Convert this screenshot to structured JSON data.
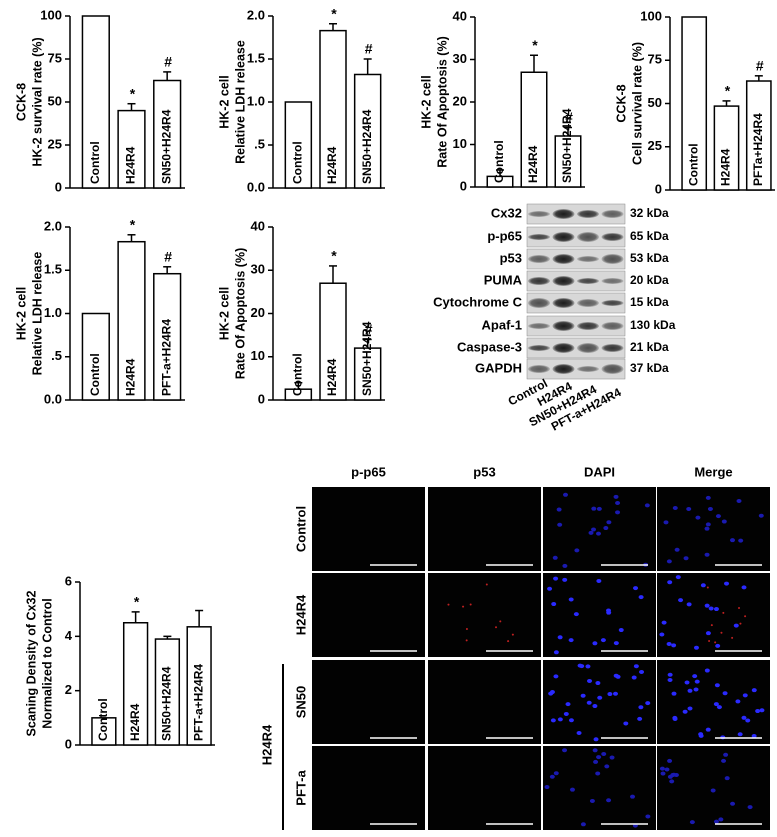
{
  "chart_data": [
    {
      "type": "bar",
      "ylabel": [
        "CCK-8",
        "HK-2 survival rate  (%)"
      ],
      "categories": [
        "Control",
        "H24R4",
        "SN50+H24R4"
      ],
      "values": [
        100,
        45,
        62.5
      ],
      "errors": [
        0,
        4,
        5
      ],
      "markers": [
        null,
        "*",
        "#"
      ],
      "ylim": [
        0,
        100
      ],
      "yticks": [
        0,
        25,
        50,
        75,
        100
      ],
      "color": "#ffffff"
    },
    {
      "type": "bar",
      "ylabel": [
        "HK-2 cell",
        "Relative LDH release"
      ],
      "categories": [
        "Control",
        "H24R4",
        "SN50+H24R4"
      ],
      "values": [
        1,
        1.83,
        1.32
      ],
      "errors": [
        0,
        0.08,
        0.18
      ],
      "markers": [
        null,
        "*",
        "#"
      ],
      "ylim": [
        0,
        2
      ],
      "yticks": [
        {
          "value": 0,
          "label": "0.0"
        },
        {
          "value": 0.5,
          "label": ".5"
        },
        {
          "value": 1,
          "label": "1.0"
        },
        {
          "value": 1.5,
          "label": "1.5"
        },
        {
          "value": 2,
          "label": "2.0"
        }
      ],
      "color": "#ffffff"
    },
    {
      "type": "bar",
      "ylabel": [
        "HK-2 cell",
        "Rate Of Apoptosis (%)"
      ],
      "categories": [
        "Control",
        "H24R4",
        "SN50+H24R4"
      ],
      "values": [
        2.5,
        27,
        12
      ],
      "errors": [
        1.5,
        4,
        2
      ],
      "markers": [
        null,
        "*",
        "#"
      ],
      "ylim": [
        0,
        40
      ],
      "yticks": [
        0,
        10,
        20,
        30,
        40
      ],
      "color": "#ffffff"
    },
    {
      "type": "bar",
      "ylabel": [
        "CCK-8",
        "Cell survival rate  (%)"
      ],
      "categories": [
        "Control",
        "H24R4",
        "PFTa+H24R4"
      ],
      "values": [
        100,
        48.5,
        63
      ],
      "errors": [
        0,
        3,
        3
      ],
      "markers": [
        null,
        "*",
        "#"
      ],
      "ylim": [
        0,
        100
      ],
      "yticks": [
        0,
        25,
        50,
        75,
        100
      ],
      "color": "#ffffff"
    },
    {
      "type": "bar",
      "ylabel": [
        "HK-2 cell",
        "Relative LDH release"
      ],
      "categories": [
        "Control",
        "H24R4",
        "PFT-a+H24R4"
      ],
      "values": [
        1,
        1.83,
        1.46
      ],
      "errors": [
        0,
        0.08,
        0.08
      ],
      "markers": [
        null,
        "*",
        "#"
      ],
      "ylim": [
        0,
        2
      ],
      "yticks": [
        {
          "value": 0,
          "label": "0.0"
        },
        {
          "value": 0.5,
          "label": ".5"
        },
        {
          "value": 1,
          "label": "1.0"
        },
        {
          "value": 1.5,
          "label": "1.5"
        },
        {
          "value": 2,
          "label": "2.0"
        }
      ],
      "color": "#ffffff"
    },
    {
      "type": "bar",
      "ylabel": [
        "HK-2 cell",
        "Rate Of Apoptosis (%)"
      ],
      "categories": [
        "Control",
        "H24R4",
        "SN50+H24R4"
      ],
      "values": [
        2.5,
        27,
        12
      ],
      "errors": [
        1.5,
        4,
        2
      ],
      "markers": [
        null,
        "*",
        "#"
      ],
      "ylim": [
        0,
        40
      ],
      "yticks": [
        0,
        10,
        20,
        30,
        40
      ],
      "color": "#ffffff"
    },
    {
      "type": "bar",
      "ylabel": [
        "Scaning Density of Cx32",
        "Normalized to Control"
      ],
      "categories": [
        "Control",
        "H24R4",
        "SN50+H24R4",
        "PFT-a+H24R4"
      ],
      "values": [
        1,
        4.5,
        3.9,
        4.35
      ],
      "errors": [
        0,
        0.4,
        0.1,
        0.6
      ],
      "markers": [
        null,
        "*",
        null,
        null
      ],
      "ylim": [
        0,
        6
      ],
      "yticks": [
        0,
        2,
        4,
        6
      ],
      "color": "#ffffff"
    }
  ],
  "blot": {
    "rows": [
      {
        "label": "Cx32",
        "size": "32 kDa"
      },
      {
        "label": "p-p65",
        "size": "65 kDa"
      },
      {
        "label": "p53",
        "size": "53 kDa"
      },
      {
        "label": "PUMA",
        "size": "20 kDa"
      },
      {
        "label": "Cytochrome C",
        "size": "15 kDa"
      },
      {
        "label": "Apaf-1",
        "size": "130 kDa"
      },
      {
        "label": "Caspase-3",
        "size": "21 kDa"
      },
      {
        "label": "GAPDH",
        "size": "37 kDa"
      }
    ],
    "lanes": [
      "Control",
      "H24R4",
      "SN50+H24R4",
      "PFT-a+H24R4"
    ]
  },
  "microscopy": {
    "columns": [
      "p-p65",
      "p53",
      "DAPI",
      "Merge"
    ],
    "rows": [
      "Control",
      "H24R4",
      "SN50",
      "PFT-a"
    ],
    "group_label": "H24R4"
  }
}
